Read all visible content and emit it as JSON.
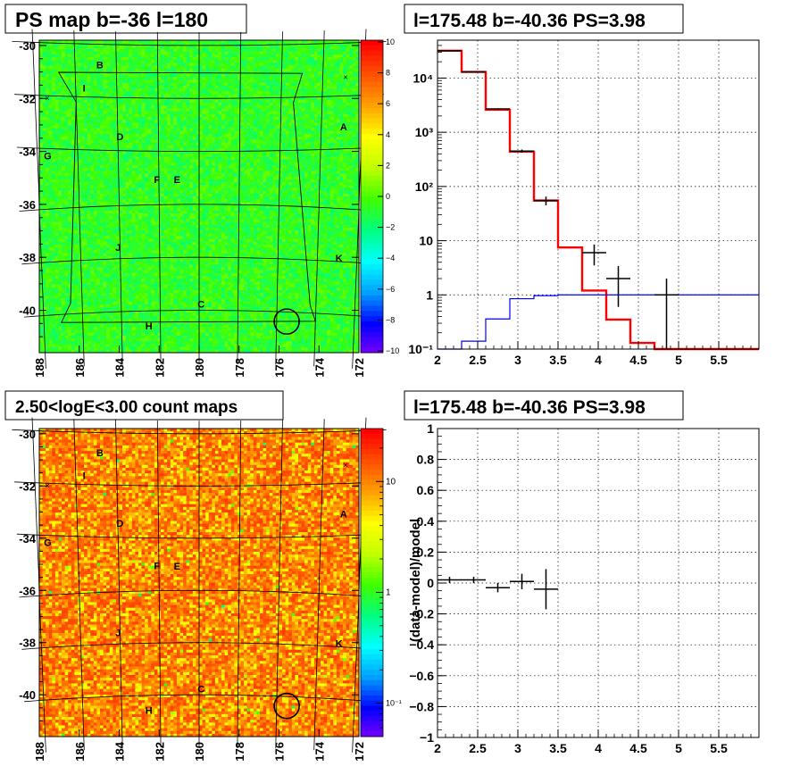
{
  "panels": {
    "ps_map": {
      "title": "PS map b=-36 l=180",
      "yticks": [
        "-30",
        "-32",
        "-34",
        "-36",
        "-38",
        "-40"
      ],
      "xticks": [
        "188",
        "186",
        "184",
        "182",
        "180",
        "178",
        "176",
        "174",
        "172"
      ],
      "colorbar_ticks": [
        "10",
        "8",
        "6",
        "4",
        "2",
        "0",
        "−2",
        "−4",
        "−6",
        "−8",
        "−10"
      ],
      "region_labels": [
        "A",
        "B",
        "C",
        "D",
        "E",
        "F",
        "G",
        "H",
        "I",
        "J",
        "K"
      ]
    },
    "count_map": {
      "title": "2.50<logE<3.00 count maps",
      "yticks": [
        "-30",
        "-32",
        "-34",
        "-36",
        "-38",
        "-40"
      ],
      "xticks": [
        "188",
        "186",
        "184",
        "182",
        "180",
        "178",
        "176",
        "174",
        "172"
      ],
      "colorbar_ticks": [
        "10",
        "1"
      ],
      "colorbar_ticks_small": [
        "10⁻¹"
      ],
      "region_labels": [
        "A",
        "B",
        "C",
        "D",
        "E",
        "F",
        "G",
        "H",
        "I",
        "J",
        "K"
      ]
    },
    "spectrum": {
      "title": "l=175.48 b=-40.36 PS=3.98"
    },
    "residual": {
      "title": "l=175.48 b=-40.36 PS=3.98"
    }
  },
  "chart_data": [
    {
      "type": "heatmap",
      "name": "ps_map",
      "title": "PS map b=-36 l=180",
      "xlabel": "",
      "ylabel": "",
      "xlim": [
        188,
        172
      ],
      "ylim": [
        -41.6,
        -29.8
      ],
      "zlim": [
        -10,
        10
      ],
      "typical_value": -0.5,
      "colorscale": [
        "#7f00ff",
        "#0000ff",
        "#00a0ff",
        "#00ffff",
        "#00ff80",
        "#40ff00",
        "#c0ff00",
        "#ffff00",
        "#ffa000",
        "#ff5000",
        "#ff0000"
      ],
      "source_circle": {
        "l": 175.48,
        "b": -40.36
      },
      "labels": [
        {
          "text": "A",
          "l": 172.9,
          "b": -33.3
        },
        {
          "text": "B",
          "l": 184.8,
          "b": -30.9
        },
        {
          "text": "C",
          "l": 179.9,
          "b": -39.9
        },
        {
          "text": "D",
          "l": 183.9,
          "b": -33.6
        },
        {
          "text": "E",
          "l": 181.1,
          "b": -35.2
        },
        {
          "text": "F",
          "l": 182.1,
          "b": -35.2
        },
        {
          "text": "G",
          "l": 187.5,
          "b": -34.4
        },
        {
          "text": "H",
          "l": 182.6,
          "b": -40.7
        },
        {
          "text": "I",
          "l": 185.6,
          "b": -31.8
        },
        {
          "text": "J",
          "l": 184.1,
          "b": -37.7
        },
        {
          "text": "K",
          "l": 172.9,
          "b": -38.0
        }
      ]
    },
    {
      "type": "bar",
      "name": "spectrum",
      "title": "l=175.48 b=-40.36 PS=3.98",
      "xlabel": "",
      "ylabel": "",
      "xlim": [
        2,
        6
      ],
      "ylim": [
        0.1,
        50000
      ],
      "yscale": "log",
      "xticks": [
        "2",
        "2.5",
        "3",
        "3.5",
        "4",
        "4.5",
        "5",
        "5.5"
      ],
      "yticks": [
        "10⁻¹",
        "1",
        "10",
        "10²",
        "10³",
        "10⁴"
      ],
      "grid": true,
      "bin_edges": [
        2.0,
        2.3,
        2.6,
        2.9,
        3.2,
        3.5,
        3.8,
        4.1,
        4.4,
        4.7,
        5.0,
        6.0
      ],
      "series": [
        {
          "color": "#ff0000",
          "values": [
            32000,
            13000,
            2600,
            440,
            55,
            7.5,
            1.2,
            0.35,
            0.13,
            0.1,
            0.1
          ]
        },
        {
          "color": "#0000ff",
          "values": [
            0.1,
            0.14,
            0.36,
            0.85,
            0.97,
            1.0,
            1.0,
            1.0,
            1.0,
            1.0,
            1.0
          ]
        }
      ],
      "points": [
        {
          "x": 2.15,
          "y": 32000,
          "xerr": 0.15,
          "ylo": 31800,
          "yhi": 32200
        },
        {
          "x": 2.45,
          "y": 13000,
          "xerr": 0.15,
          "ylo": 12800,
          "yhi": 13200
        },
        {
          "x": 2.75,
          "y": 2700,
          "xerr": 0.15,
          "ylo": 2620,
          "yhi": 2780
        },
        {
          "x": 3.05,
          "y": 450,
          "xerr": 0.15,
          "ylo": 420,
          "yhi": 480
        },
        {
          "x": 3.35,
          "y": 55,
          "xerr": 0.15,
          "ylo": 45,
          "yhi": 65
        },
        {
          "x": 3.95,
          "y": 6,
          "xerr": 0.15,
          "ylo": 3.5,
          "yhi": 8.5
        },
        {
          "x": 4.25,
          "y": 2,
          "xerr": 0.15,
          "ylo": 0.6,
          "yhi": 3.4
        },
        {
          "x": 4.85,
          "y": 1,
          "xerr": 0.15,
          "ylo": 0.1,
          "yhi": 2
        }
      ]
    },
    {
      "type": "heatmap",
      "name": "count_map",
      "title": "2.50<logE<3.00 count maps",
      "xlabel": "",
      "ylabel": "",
      "xlim": [
        188,
        172
      ],
      "ylim": [
        -41.6,
        -29.8
      ],
      "zscale": "log",
      "zlim": [
        0.05,
        30
      ],
      "typical_value": 10,
      "colorscale": [
        "#7f00ff",
        "#0000ff",
        "#00a0ff",
        "#00ffff",
        "#00ff80",
        "#40ff00",
        "#c0ff00",
        "#ffff00",
        "#ffa000",
        "#ff5000",
        "#ff0000"
      ],
      "source_circle": {
        "l": 175.48,
        "b": -40.36
      }
    },
    {
      "type": "scatter",
      "name": "residual",
      "title": "l=175.48 b=-40.36 PS=3.98",
      "xlabel": "",
      "ylabel": "(data-model)/model",
      "xlim": [
        2,
        6
      ],
      "ylim": [
        -1,
        1
      ],
      "xticks": [
        "2",
        "2.5",
        "3",
        "3.5",
        "4",
        "4.5",
        "5",
        "5.5"
      ],
      "yticks": [
        "−1",
        "−0.8",
        "−0.6",
        "−0.4",
        "−0.2",
        "0",
        "0.2",
        "0.4",
        "0.6",
        "0.8",
        "1"
      ],
      "grid": true,
      "points": [
        {
          "x": 2.15,
          "y": 0.02,
          "xerr": 0.15,
          "err": 0.02
        },
        {
          "x": 2.45,
          "y": 0.02,
          "xerr": 0.15,
          "err": 0.02
        },
        {
          "x": 2.75,
          "y": -0.03,
          "xerr": 0.15,
          "err": 0.03
        },
        {
          "x": 3.05,
          "y": 0.01,
          "xerr": 0.15,
          "err": 0.05
        },
        {
          "x": 3.35,
          "y": -0.04,
          "xerr": 0.15,
          "err": 0.13
        }
      ]
    }
  ]
}
